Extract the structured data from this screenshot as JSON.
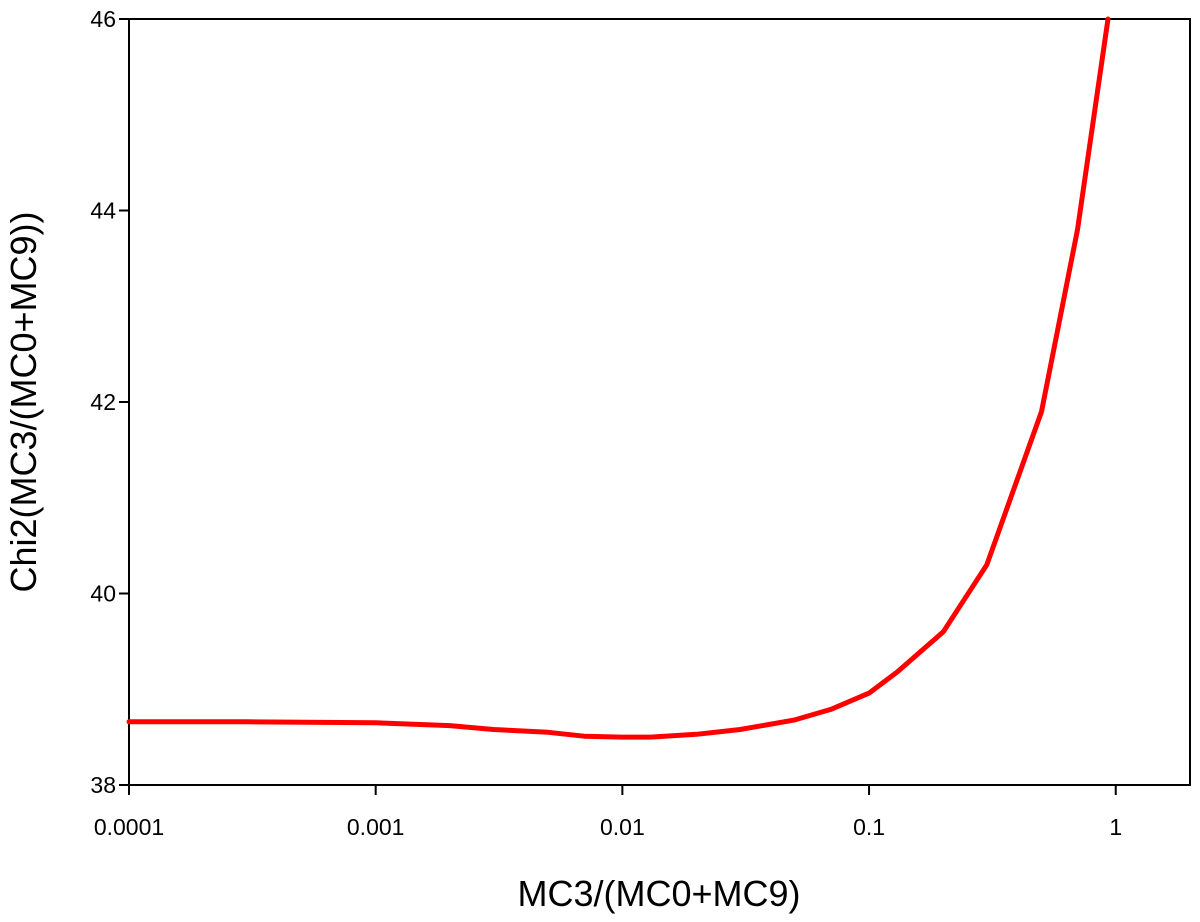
{
  "chart_data": {
    "type": "line",
    "x_scale": "log",
    "xlabel": "MC3/(MC0+MC9)",
    "ylabel": "Chi2(MC3/(MC0+MC9))",
    "xlim": [
      0.0001,
      2.0
    ],
    "ylim": [
      38,
      46
    ],
    "x_ticks": [
      0.0001,
      0.001,
      0.01,
      0.1,
      1
    ],
    "x_tick_labels": [
      "0.0001",
      "0.001",
      "0.01",
      "0.1",
      "1"
    ],
    "y_ticks": [
      38,
      40,
      42,
      44,
      46
    ],
    "y_tick_labels": [
      "38",
      "40",
      "42",
      "44",
      "46"
    ],
    "grid": false,
    "series": [
      {
        "color": "#ff0000",
        "x": [
          0.0001,
          0.0003,
          0.001,
          0.002,
          0.003,
          0.005,
          0.007,
          0.01,
          0.013,
          0.02,
          0.03,
          0.05,
          0.07,
          0.1,
          0.13,
          0.2,
          0.3,
          0.5,
          0.7,
          0.93
        ],
        "y": [
          38.66,
          38.66,
          38.65,
          38.62,
          38.58,
          38.55,
          38.51,
          38.5,
          38.5,
          38.53,
          38.58,
          38.68,
          38.79,
          38.96,
          39.18,
          39.6,
          40.3,
          41.9,
          43.8,
          46.0
        ]
      }
    ]
  }
}
